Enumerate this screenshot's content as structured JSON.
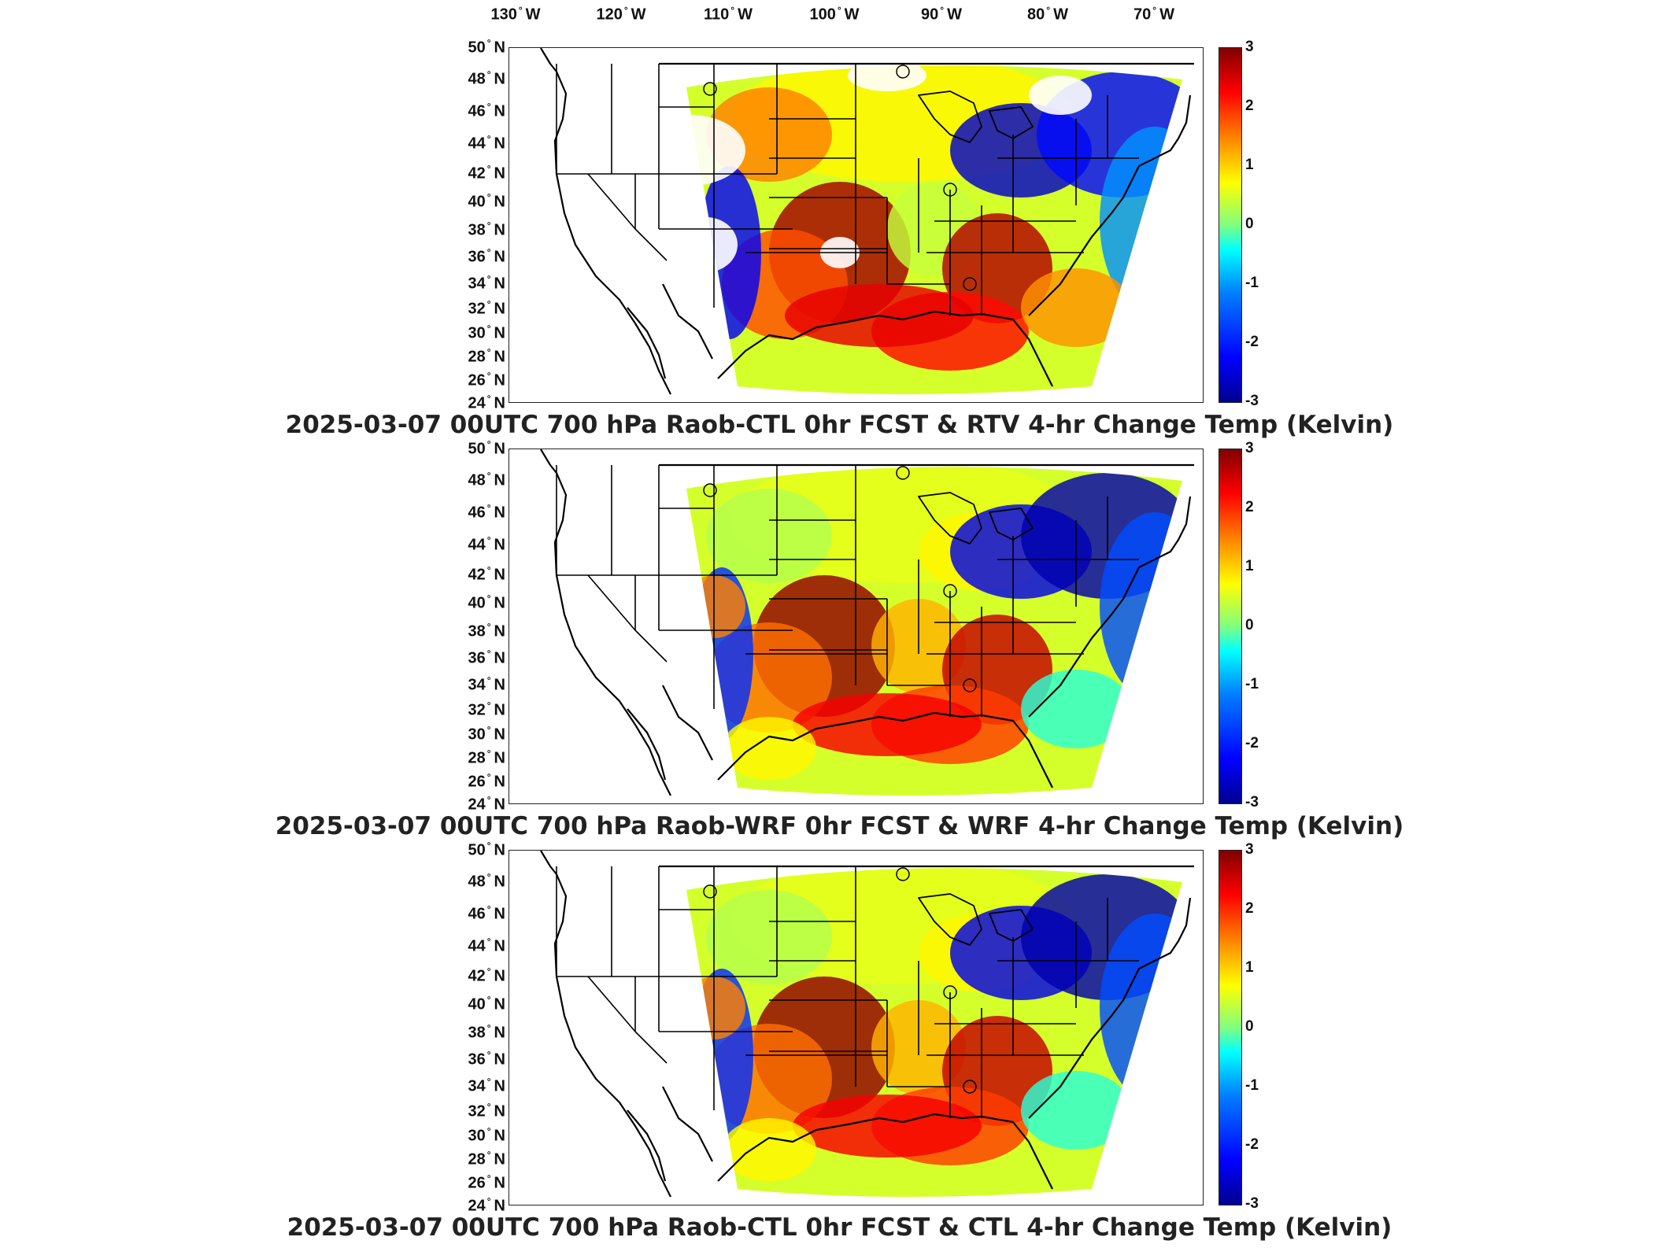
{
  "longitude_labels": [
    {
      "deg": "130",
      "hem": "W"
    },
    {
      "deg": "120",
      "hem": "W"
    },
    {
      "deg": "110",
      "hem": "W"
    },
    {
      "deg": "100",
      "hem": "W"
    },
    {
      "deg": "90",
      "hem": "W"
    },
    {
      "deg": "80",
      "hem": "W"
    },
    {
      "deg": "70",
      "hem": "W"
    }
  ],
  "latitude_labels": [
    {
      "deg": "50",
      "hem": "N"
    },
    {
      "deg": "48",
      "hem": "N"
    },
    {
      "deg": "46",
      "hem": "N"
    },
    {
      "deg": "44",
      "hem": "N"
    },
    {
      "deg": "42",
      "hem": "N"
    },
    {
      "deg": "40",
      "hem": "N"
    },
    {
      "deg": "38",
      "hem": "N"
    },
    {
      "deg": "36",
      "hem": "N"
    },
    {
      "deg": "34",
      "hem": "N"
    },
    {
      "deg": "32",
      "hem": "N"
    },
    {
      "deg": "30",
      "hem": "N"
    },
    {
      "deg": "28",
      "hem": "N"
    },
    {
      "deg": "26",
      "hem": "N"
    },
    {
      "deg": "24",
      "hem": "N"
    }
  ],
  "colorbar": {
    "ticks": [
      "3",
      "2",
      "1",
      "0",
      "-1",
      "-2",
      "-3"
    ],
    "range": [
      -3,
      3
    ],
    "colors": [
      "#00008f",
      "#0000ff",
      "#0080ff",
      "#00ffff",
      "#80ff80",
      "#ffff00",
      "#ff8000",
      "#ff0000",
      "#800000"
    ]
  },
  "panels": [
    {
      "title": "2025-03-07 00UTC 700 hPa Raob-CTL 0hr FCST & RTV 4-hr Change Temp (Kelvin)",
      "variant": "sparse"
    },
    {
      "title": "2025-03-07 00UTC 700 hPa Raob-WRF 0hr FCST & WRF 4-hr Change Temp (Kelvin)",
      "variant": "full"
    },
    {
      "title": "2025-03-07 00UTC 700 hPa Raob-CTL 0hr FCST & CTL 4-hr Change Temp (Kelvin)",
      "variant": "full"
    }
  ],
  "map_features": {
    "station_markers": 4,
    "boundaries": "US states, Canada, Mexico coastlines"
  }
}
